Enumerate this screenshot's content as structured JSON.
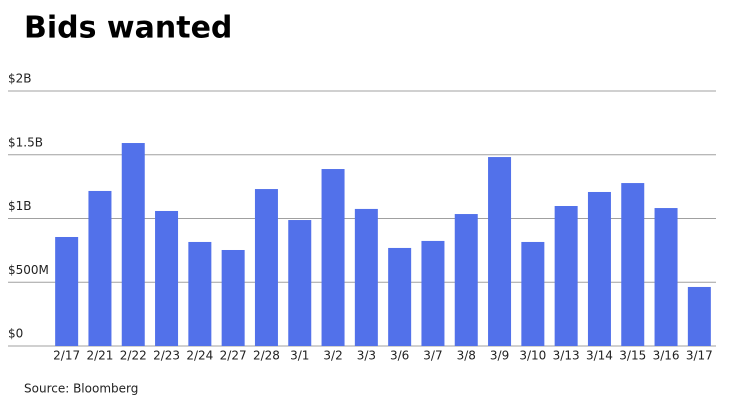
{
  "chart_data": {
    "type": "bar",
    "title": "Bids wanted",
    "source": "Source: Bloomberg",
    "categories": [
      "2/17",
      "2/21",
      "2/22",
      "2/23",
      "2/24",
      "2/27",
      "2/28",
      "3/1",
      "3/2",
      "3/3",
      "3/6",
      "3/7",
      "3/8",
      "3/9",
      "3/10",
      "3/13",
      "3/14",
      "3/15",
      "3/16",
      "3/17"
    ],
    "values": [
      855000000,
      1216000000,
      1592000000,
      1059000000,
      816000000,
      753000000,
      1231000000,
      988000000,
      1388000000,
      1075000000,
      769000000,
      824000000,
      1035000000,
      1482000000,
      816000000,
      1098000000,
      1208000000,
      1278000000,
      1082000000,
      463000000
    ],
    "color": "#5271ea",
    "ylim": [
      0,
      2000000000
    ],
    "yticks": [
      {
        "value": 0,
        "label": "$0"
      },
      {
        "value": 500000000,
        "label": "$500M"
      },
      {
        "value": 1000000000,
        "label": "$1B"
      },
      {
        "value": 1500000000,
        "label": "$1.5B"
      },
      {
        "value": 2000000000,
        "label": "$2B"
      }
    ],
    "grid": true
  }
}
